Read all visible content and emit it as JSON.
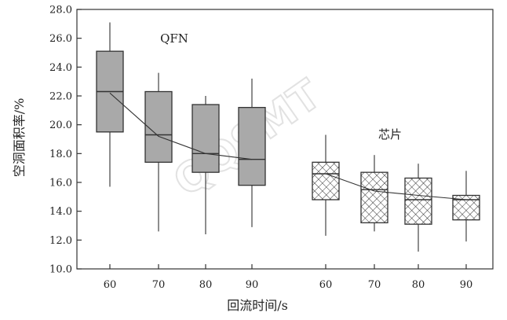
{
  "chart_data": {
    "type": "box",
    "title": "",
    "xlabel": "回流时间/s",
    "ylabel": "空洞面积率/%",
    "ylim": [
      10.0,
      28.0
    ],
    "yticks": [
      "10.0",
      "12.0",
      "14.0",
      "16.0",
      "18.0",
      "20.0",
      "22.0",
      "24.0",
      "26.0",
      "28.0"
    ],
    "grid": false,
    "legend": "none",
    "watermark": "QQSMT",
    "groups": [
      {
        "annotation": "QFN",
        "fill": "#a9a9a9",
        "pattern": "solid",
        "boxes": [
          {
            "x": "60",
            "min": 15.7,
            "q1": 19.5,
            "median": 22.3,
            "q3": 25.1,
            "max": 27.1,
            "mean": 22.2
          },
          {
            "x": "70",
            "min": 12.6,
            "q1": 17.4,
            "median": 19.3,
            "q3": 22.3,
            "max": 23.6,
            "mean": 19.2
          },
          {
            "x": "80",
            "min": 12.4,
            "q1": 16.7,
            "median": 18.0,
            "q3": 21.4,
            "max": 22.0,
            "mean": 18.0
          },
          {
            "x": "90",
            "min": 12.9,
            "q1": 15.8,
            "median": 17.6,
            "q3": 21.2,
            "max": 23.2,
            "mean": 17.6
          }
        ]
      },
      {
        "annotation": "芯片",
        "fill": "#ffffff",
        "pattern": "crosshatch",
        "boxes": [
          {
            "x": "60",
            "min": 12.3,
            "q1": 14.8,
            "median": 16.6,
            "q3": 17.4,
            "max": 19.3,
            "mean": 16.6
          },
          {
            "x": "70",
            "min": 12.6,
            "q1": 13.2,
            "median": 15.5,
            "q3": 16.7,
            "max": 17.9,
            "mean": 15.4
          },
          {
            "x": "80",
            "min": 11.2,
            "q1": 13.1,
            "median": 14.8,
            "q3": 16.3,
            "max": 17.3,
            "mean": 15.1
          },
          {
            "x": "90",
            "min": 11.9,
            "q1": 13.4,
            "median": 14.8,
            "q3": 15.1,
            "max": 16.8,
            "mean": 14.8
          }
        ]
      }
    ]
  }
}
